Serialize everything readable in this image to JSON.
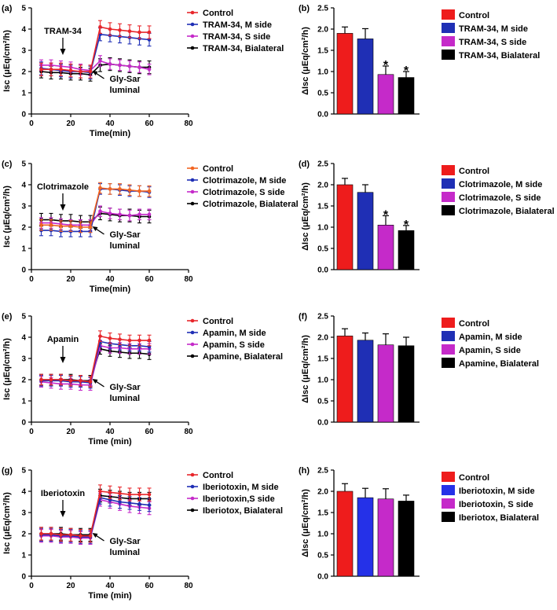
{
  "chart_data": [
    {
      "panel": "(a)",
      "type": "line",
      "xlabel": "Time(min)",
      "ylabel": "Isc (μEq/cm²/h)",
      "xlim": [
        0,
        80
      ],
      "ylim": [
        0,
        5
      ],
      "xticks": [
        0,
        20,
        40,
        60,
        80
      ],
      "yticks": [
        0,
        1,
        2,
        3,
        4,
        5
      ],
      "x": [
        5,
        10,
        15,
        20,
        25,
        30,
        35,
        40,
        45,
        50,
        55,
        60
      ],
      "annotations": {
        "drug": "TRAM-34",
        "stim_line1": "Gly-Sar",
        "stim_line2": "luminal"
      },
      "series": [
        {
          "name": "Control",
          "color": "#e8262b",
          "values": [
            2.1,
            2.1,
            2.1,
            2.05,
            2.0,
            2.0,
            4.1,
            4.0,
            3.95,
            3.9,
            3.85,
            3.85
          ],
          "err": 0.3
        },
        {
          "name": "TRAM-34, M side",
          "color": "#1f2fb5",
          "values": [
            2.15,
            2.1,
            2.05,
            2.0,
            2.0,
            1.95,
            3.75,
            3.7,
            3.65,
            3.6,
            3.55,
            3.5
          ],
          "err": 0.3
        },
        {
          "name": "TRAM-34, S side",
          "color": "#c52ac9",
          "values": [
            2.3,
            2.3,
            2.25,
            2.2,
            2.1,
            2.05,
            2.5,
            2.35,
            2.3,
            2.25,
            2.2,
            2.1
          ],
          "err": 0.25
        },
        {
          "name": "TRAM-34, Bialateral",
          "color": "#000000",
          "values": [
            2.0,
            1.95,
            1.95,
            1.9,
            1.9,
            1.85,
            2.3,
            2.35,
            2.3,
            2.25,
            2.2,
            2.2
          ],
          "err": 0.3
        }
      ]
    },
    {
      "panel": "(b)",
      "type": "bar",
      "ylabel": "ΔIsc (μEq/cm²/h)",
      "ylim": [
        0,
        2.5
      ],
      "yticks": [
        "0.0",
        "0.5",
        "1.0",
        "1.5",
        "2.0",
        "2.5"
      ],
      "legend": [
        "Control",
        "TRAM-34, M side",
        "TRAM-34, S side",
        "TRAM-34, Bialateral"
      ],
      "colors": [
        "#ee1c1c",
        "#1f2fb5",
        "#c52ac9",
        "#000000"
      ],
      "values": [
        1.9,
        1.77,
        0.93,
        0.86
      ],
      "errors": [
        0.15,
        0.24,
        0.2,
        0.14
      ],
      "significant": [
        false,
        false,
        true,
        true
      ],
      "star": "*"
    },
    {
      "panel": "(c)",
      "type": "line",
      "xlabel": "Time(min)",
      "ylabel": "Isc (μEq/cm²/h)",
      "xlim": [
        0,
        80
      ],
      "ylim": [
        0,
        5
      ],
      "xticks": [
        0,
        20,
        40,
        60,
        80
      ],
      "yticks": [
        0,
        1,
        2,
        3,
        4,
        5
      ],
      "x": [
        5,
        10,
        15,
        20,
        25,
        30,
        35,
        40,
        45,
        50,
        55,
        60
      ],
      "annotations": {
        "drug": "Clotrimazole",
        "stim_line1": "Gly-Sar",
        "stim_line2": "luminal"
      },
      "series": [
        {
          "name": "Control",
          "color": "#f26522",
          "values": [
            2.1,
            2.1,
            2.05,
            2.05,
            2.0,
            2.0,
            3.85,
            3.8,
            3.8,
            3.75,
            3.7,
            3.7
          ],
          "err": 0.25
        },
        {
          "name": "Clotrimazole, M side",
          "color": "#1f2fb5",
          "values": [
            1.85,
            1.85,
            1.8,
            1.8,
            1.8,
            1.8,
            3.8,
            3.8,
            3.75,
            3.7,
            3.7,
            3.65
          ],
          "err": 0.25
        },
        {
          "name": "Clotrimazole, S side",
          "color": "#c52ac9",
          "values": [
            2.2,
            2.2,
            2.15,
            2.1,
            2.1,
            2.1,
            2.75,
            2.65,
            2.6,
            2.55,
            2.6,
            2.6
          ],
          "err": 0.25
        },
        {
          "name": "Clotrimazole, Bialateral",
          "color": "#000000",
          "values": [
            2.35,
            2.35,
            2.3,
            2.3,
            2.25,
            2.25,
            2.65,
            2.6,
            2.55,
            2.55,
            2.5,
            2.5
          ],
          "err": 0.3
        }
      ]
    },
    {
      "panel": "(d)",
      "type": "bar",
      "ylabel": "ΔIsc (μEq/cm²/h)",
      "ylim": [
        0,
        2.5
      ],
      "yticks": [
        "0.0",
        "0.5",
        "1.0",
        "1.5",
        "2.0",
        "2.5"
      ],
      "legend": [
        "Control",
        "Clotrimazole, M side",
        "Clotrimazole, S side",
        "Clotrimazole, Bialateral"
      ],
      "colors": [
        "#ee1c1c",
        "#1f2fb5",
        "#c52ac9",
        "#000000"
      ],
      "values": [
        2.0,
        1.82,
        1.05,
        0.92
      ],
      "errors": [
        0.15,
        0.18,
        0.22,
        0.12
      ],
      "significant": [
        false,
        false,
        true,
        true
      ],
      "star": "*"
    },
    {
      "panel": "(e)",
      "type": "line",
      "xlabel": "Time (min)",
      "ylabel": "Isc (μEq/cm²/h)",
      "xlim": [
        0,
        80
      ],
      "ylim": [
        0,
        5
      ],
      "xticks": [
        0,
        20,
        40,
        60,
        80
      ],
      "yticks": [
        0,
        1,
        2,
        3,
        4,
        5
      ],
      "x": [
        5,
        10,
        15,
        20,
        25,
        30,
        35,
        40,
        45,
        50,
        55,
        60
      ],
      "annotations": {
        "drug": "Apamin",
        "stim_line1": "Gly-Sar",
        "stim_line2": "luminal"
      },
      "series": [
        {
          "name": "Control",
          "color": "#e8262b",
          "values": [
            2.0,
            2.0,
            2.0,
            1.95,
            1.95,
            1.9,
            4.05,
            3.95,
            3.9,
            3.85,
            3.85,
            3.85
          ],
          "err": 0.25
        },
        {
          "name": "Apamin, M side",
          "color": "#1f2fb5",
          "values": [
            1.95,
            1.95,
            1.95,
            1.9,
            1.9,
            1.85,
            3.8,
            3.7,
            3.65,
            3.6,
            3.6,
            3.55
          ],
          "err": 0.25
        },
        {
          "name": "Apamin, S side",
          "color": "#c52ac9",
          "values": [
            1.9,
            1.85,
            1.8,
            1.8,
            1.75,
            1.75,
            3.6,
            3.5,
            3.5,
            3.45,
            3.45,
            3.45
          ],
          "err": 0.25
        },
        {
          "name": "Apamine, Bialateral",
          "color": "#000000",
          "values": [
            2.0,
            2.0,
            2.0,
            2.0,
            1.95,
            1.95,
            3.45,
            3.35,
            3.3,
            3.25,
            3.25,
            3.2
          ],
          "err": 0.25
        }
      ]
    },
    {
      "panel": "(f)",
      "type": "bar",
      "ylabel": "ΔIsc (μEq/cm²/h)",
      "ylim": [
        0,
        2.5
      ],
      "yticks": [
        "0.0",
        "0.5",
        "1.0",
        "1.5",
        "2.0",
        "2.5"
      ],
      "legend": [
        "Control",
        "Apamin, M side",
        "Apamin, S side",
        "Apamine, Bialateral"
      ],
      "colors": [
        "#ee1c1c",
        "#1f2fb5",
        "#c52ac9",
        "#000000"
      ],
      "values": [
        2.03,
        1.93,
        1.82,
        1.8
      ],
      "errors": [
        0.17,
        0.17,
        0.26,
        0.2
      ],
      "significant": [
        false,
        false,
        false,
        false
      ],
      "star": "*"
    },
    {
      "panel": "(g)",
      "type": "line",
      "xlabel": "Time (min)",
      "ylabel": "Isc (μEq/cm²/h)",
      "xlim": [
        0,
        80
      ],
      "ylim": [
        0,
        5
      ],
      "xticks": [
        0,
        20,
        40,
        60,
        80
      ],
      "yticks": [
        0,
        1,
        2,
        3,
        4,
        5
      ],
      "x": [
        5,
        10,
        15,
        20,
        25,
        30,
        35,
        40,
        45,
        50,
        55,
        60
      ],
      "annotations": {
        "drug": "Iberiotoxin",
        "stim_line1": "Gly-Sar",
        "stim_line2": "luminal"
      },
      "series": [
        {
          "name": "Control",
          "color": "#e8262b",
          "values": [
            2.0,
            2.0,
            1.95,
            1.95,
            1.9,
            1.9,
            4.0,
            3.95,
            3.9,
            3.85,
            3.85,
            3.85
          ],
          "err": 0.3
        },
        {
          "name": "Iberiotoxin, M side",
          "color": "#1f2fb5",
          "values": [
            1.95,
            1.95,
            1.9,
            1.9,
            1.85,
            1.85,
            3.7,
            3.6,
            3.5,
            3.45,
            3.4,
            3.35
          ],
          "err": 0.3
        },
        {
          "name": "Iberiotoxin,S side",
          "color": "#c52ac9",
          "values": [
            1.9,
            1.9,
            1.85,
            1.85,
            1.8,
            1.8,
            3.6,
            3.5,
            3.4,
            3.3,
            3.25,
            3.2
          ],
          "err": 0.3
        },
        {
          "name": "Iberiotox, Bialateral",
          "color": "#000000",
          "values": [
            2.0,
            2.0,
            2.0,
            1.95,
            1.95,
            1.95,
            3.8,
            3.75,
            3.7,
            3.65,
            3.65,
            3.65
          ],
          "err": 0.3
        }
      ]
    },
    {
      "panel": "(h)",
      "type": "bar",
      "ylabel": "ΔIsc (μEq/cm²/h)",
      "ylim": [
        0,
        2.5
      ],
      "yticks": [
        "0.0",
        "0.5",
        "1.0",
        "1.5",
        "2.0",
        "2.5"
      ],
      "legend": [
        "Control",
        "Iberiotoxin, M side",
        "Iberiotoxin, S side",
        "Iberiotox, Bialateral"
      ],
      "colors": [
        "#ee1c1c",
        "#2531e8",
        "#c52ac9",
        "#000000"
      ],
      "values": [
        2.0,
        1.85,
        1.82,
        1.77
      ],
      "errors": [
        0.18,
        0.22,
        0.24,
        0.14
      ],
      "significant": [
        false,
        false,
        false,
        false
      ],
      "star": "*"
    }
  ]
}
